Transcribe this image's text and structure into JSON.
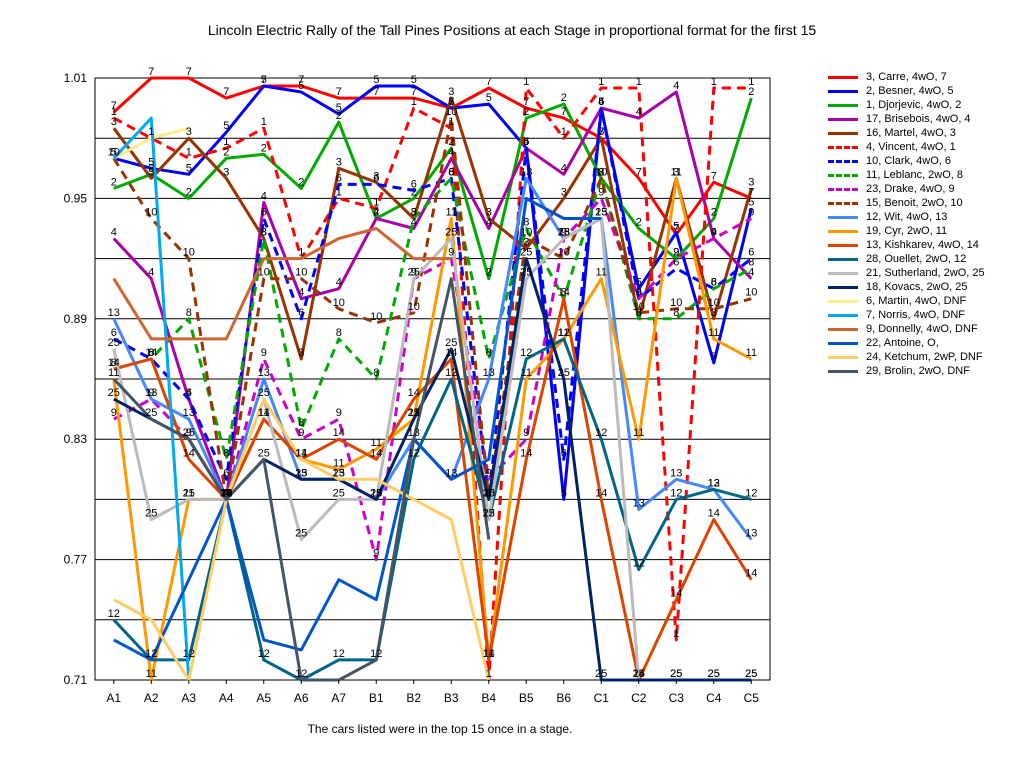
{
  "chart_data": {
    "type": "line",
    "title": "Lincoln Electric Rally of the Tall Pines  Positions at each Stage in proportional format for the first 15",
    "caption": "The cars listed were in the top 15 once in a stage.",
    "categories": [
      "A1",
      "A2",
      "A3",
      "A4",
      "A5",
      "A6",
      "A7",
      "B1",
      "B2",
      "B3",
      "B4",
      "B5",
      "B6",
      "C1",
      "C2",
      "C3",
      "C4",
      "C5"
    ],
    "y_ticks": [
      "0.71",
      "0.77",
      "0.83",
      "0.89",
      "0.95",
      "1.01"
    ],
    "ylim": [
      0.71,
      1.01
    ],
    "grid": "horizontal",
    "legend_position": "right",
    "series": [
      {
        "name": "3, Carre, 4wO, 7",
        "color": "#ff0000",
        "dash": false,
        "values": [
          0.993,
          1.01,
          1.01,
          1.0,
          1.006,
          1.006,
          1.0,
          1.0,
          1.0,
          0.995,
          1.005,
          0.995,
          0.99,
          0.98,
          0.96,
          0.932,
          0.958,
          0.95
        ]
      },
      {
        "name": "2, Besner, 4wO, 5",
        "color": "#0000ff",
        "dash": false,
        "values": [
          0.97,
          0.965,
          0.962,
          0.983,
          1.006,
          1.003,
          0.992,
          1.006,
          1.006,
          0.995,
          0.997,
          0.975,
          0.8,
          0.995,
          0.905,
          0.933,
          0.868,
          0.945
        ]
      },
      {
        "name": "1, Djorjevic, 4wO, 2",
        "color": "#00aa00",
        "dash": false,
        "values": [
          0.955,
          0.962,
          0.95,
          0.97,
          0.972,
          0.955,
          0.988,
          0.94,
          0.95,
          0.975,
          0.91,
          0.99,
          0.997,
          0.96,
          0.935,
          0.92,
          0.94,
          1.0
        ]
      },
      {
        "name": "17, Brisebois, 4wO, 4",
        "color": "#aa00aa",
        "dash": false,
        "values": [
          0.93,
          0.91,
          0.85,
          0.8,
          0.948,
          0.9,
          0.905,
          0.94,
          0.935,
          0.97,
          0.935,
          0.975,
          0.962,
          0.995,
          0.99,
          1.003,
          0.93,
          0.91
        ]
      },
      {
        "name": "16, Martel, 4wO, 3",
        "color": "#993300",
        "dash": false,
        "values": [
          0.985,
          0.96,
          0.98,
          0.96,
          0.93,
          0.87,
          0.965,
          0.958,
          0.94,
          1.0,
          0.94,
          0.925,
          0.95,
          0.98,
          0.89,
          0.96,
          0.89,
          0.955
        ]
      },
      {
        "name": "4, Vincent, 4wO, 1",
        "color": "#ff0000",
        "dash": true,
        "values": [
          0.99,
          0.98,
          0.97,
          0.975,
          0.985,
          0.92,
          0.95,
          0.945,
          0.995,
          0.985,
          0.68,
          1.005,
          0.98,
          1.005,
          1.005,
          0.73,
          1.005,
          1.005
        ]
      },
      {
        "name": "10, Clark, 4wO, 6",
        "color": "#0000ff",
        "dash": true,
        "values": [
          0.88,
          0.87,
          0.85,
          0.81,
          0.94,
          0.89,
          0.957,
          0.957,
          0.954,
          0.96,
          0.8,
          0.975,
          0.82,
          0.995,
          0.9,
          0.915,
          0.905,
          0.92
        ]
      },
      {
        "name": "11, Leblanc, 2wO, 8",
        "color": "#00aa00",
        "dash": true,
        "values": [
          0.865,
          0.87,
          0.89,
          0.82,
          0.93,
          0.835,
          0.88,
          0.86,
          0.94,
          0.96,
          0.87,
          0.935,
          0.9,
          0.96,
          0.89,
          0.89,
          0.905,
          0.915
        ]
      },
      {
        "name": "23, Drake, 4wO, 9",
        "color": "#cc00cc",
        "dash": true,
        "values": [
          0.84,
          0.85,
          0.83,
          0.8,
          0.87,
          0.83,
          0.84,
          0.77,
          0.91,
          0.92,
          0.81,
          0.83,
          0.93,
          0.95,
          0.9,
          0.92,
          0.93,
          0.94
        ]
      },
      {
        "name": "15, Benoit, 2wO, 10",
        "color": "#993300",
        "dash": true,
        "values": [
          0.97,
          0.94,
          0.92,
          0.8,
          0.91,
          0.91,
          0.895,
          0.888,
          0.893,
          0.99,
          0.8,
          0.93,
          0.92,
          0.96,
          0.893,
          0.895,
          0.895,
          0.9
        ]
      },
      {
        "name": "12, Wit, 4wO, 13",
        "color": "#4488ff",
        "dash": false,
        "values": [
          0.89,
          0.85,
          0.84,
          0.8,
          0.86,
          0.81,
          0.81,
          0.8,
          0.83,
          0.81,
          0.86,
          0.96,
          0.93,
          0.94,
          0.795,
          0.81,
          0.805,
          0.78
        ]
      },
      {
        "name": "19, Cyr, 2wO, 11",
        "color": "#ff9900",
        "dash": false,
        "values": [
          0.86,
          0.71,
          0.8,
          0.8,
          0.84,
          0.82,
          0.815,
          0.825,
          0.84,
          0.94,
          0.72,
          0.86,
          0.88,
          0.91,
          0.83,
          0.96,
          0.88,
          0.87
        ]
      },
      {
        "name": "13, Kishkarev, 4wO, 14",
        "color": "#dd4400",
        "dash": false,
        "values": [
          0.865,
          0.87,
          0.82,
          0.8,
          0.84,
          0.82,
          0.83,
          0.82,
          0.85,
          0.87,
          0.72,
          0.82,
          0.9,
          0.8,
          0.7,
          0.75,
          0.79,
          0.76
        ]
      },
      {
        "name": "28, Ouellet, 2wO, 12",
        "color": "#006688",
        "dash": false,
        "values": [
          0.74,
          0.72,
          0.72,
          0.8,
          0.72,
          0.7,
          0.72,
          0.72,
          0.82,
          0.86,
          0.79,
          0.87,
          0.88,
          0.83,
          0.765,
          0.8,
          0.805,
          0.8
        ]
      },
      {
        "name": "21, Sutherland, 2wO, 25",
        "color": "#bbbbbb",
        "dash": false,
        "values": [
          0.875,
          0.79,
          0.8,
          0.8,
          0.85,
          0.78,
          0.8,
          0.8,
          0.91,
          0.93,
          0.79,
          0.91,
          0.93,
          0.94,
          0.7,
          0.7,
          0.7,
          0.7
        ]
      },
      {
        "name": "18, Kovacs, 2wO, 25",
        "color": "#002266",
        "dash": false,
        "values": [
          0.85,
          0.84,
          0.83,
          0.8,
          0.82,
          0.81,
          0.81,
          0.8,
          0.84,
          0.875,
          0.8,
          0.92,
          0.86,
          0.7,
          0.7,
          0.7,
          0.7,
          0.7
        ]
      },
      {
        "name": "6, Martin, 4wO, DNF",
        "color": "#ffee88",
        "dash": false,
        "values": [
          0.97,
          0.98,
          0.985,
          null,
          null,
          null,
          null,
          null,
          null,
          null,
          null,
          null,
          null,
          null,
          null,
          null,
          null,
          null
        ]
      },
      {
        "name": "7, Norris, 4wO, DNF",
        "color": "#00aaee",
        "dash": false,
        "values": [
          0.97,
          0.99,
          0.7,
          null,
          null,
          null,
          null,
          null,
          null,
          null,
          null,
          null,
          null,
          null,
          null,
          null,
          null,
          null
        ]
      },
      {
        "name": "9, Donnelly, 4wO,  DNF",
        "color": "#cc6633",
        "dash": false,
        "values": [
          0.91,
          0.88,
          0.88,
          0.88,
          0.92,
          0.92,
          0.93,
          0.935,
          0.92,
          0.92,
          null,
          null,
          null,
          null,
          null,
          null,
          null,
          null
        ]
      },
      {
        "name": "22, Antoine, O,",
        "color": "#0055cc",
        "dash": false,
        "values": [
          0.73,
          0.72,
          0.76,
          0.8,
          0.73,
          0.725,
          0.76,
          0.75,
          0.83,
          0.81,
          0.82,
          0.95,
          0.94,
          0.94,
          null,
          null,
          null,
          null
        ]
      },
      {
        "name": "24, Ketchum, 2wP,  DNF",
        "color": "#ffcc66",
        "dash": false,
        "values": [
          0.75,
          0.74,
          0.71,
          0.8,
          0.85,
          0.82,
          0.81,
          0.81,
          0.8,
          0.79,
          0.71,
          null,
          null,
          null,
          null,
          null,
          null,
          null
        ]
      },
      {
        "name": "29, Brolin, 2wO,  DNF",
        "color": "#445566",
        "dash": false,
        "values": [
          0.86,
          0.84,
          0.83,
          0.8,
          0.82,
          0.7,
          0.7,
          0.72,
          0.83,
          0.91,
          0.78,
          null,
          null,
          null,
          null,
          null,
          null,
          null
        ]
      }
    ],
    "point_labels": [
      "7",
      "5",
      "2",
      "4",
      "3",
      "1",
      "6",
      "8",
      "9",
      "10",
      "13",
      "11",
      "14",
      "12",
      "25",
      "25",
      "",
      "",
      "",
      "",
      "",
      ""
    ]
  }
}
